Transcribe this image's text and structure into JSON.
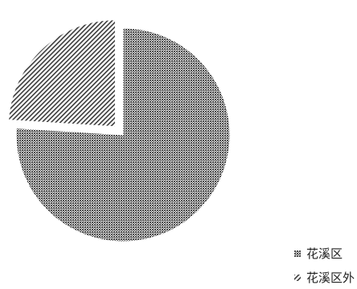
{
  "chart_data": {
    "type": "pie",
    "title": "",
    "slices": [
      {
        "label": "花溪区",
        "value": 76,
        "pattern": "dots",
        "color": "#555555"
      },
      {
        "label": "花溪区外",
        "value": 24,
        "pattern": "diagonal-hatch",
        "color": "#444444",
        "exploded": true
      }
    ],
    "legend": {
      "position": "bottom-right",
      "entries": [
        "花溪区",
        "花溪区外"
      ]
    }
  }
}
